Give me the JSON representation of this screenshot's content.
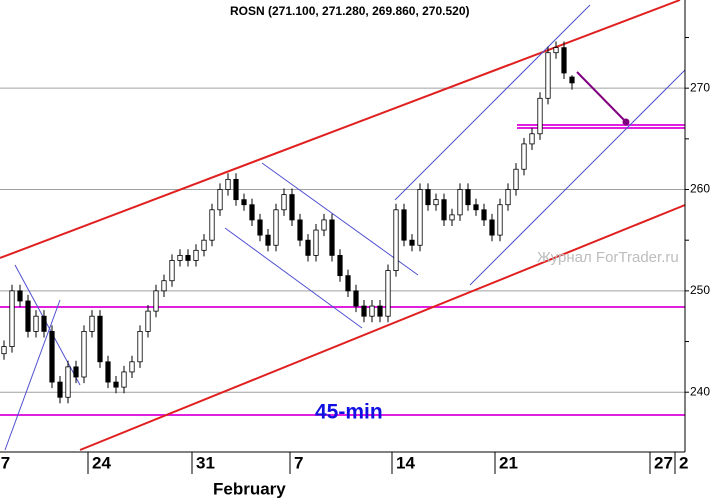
{
  "chart_data": {
    "type": "candlestick",
    "title": "ROSN (271.100, 271.280, 269.860, 270.520)",
    "watermark": "Журнал ForTrader.ru",
    "annotation": "45-min",
    "month_label": "February",
    "ohlc": [
      [
        243.8,
        245.1,
        243.2,
        244.5
      ],
      [
        244.5,
        250.6,
        243.9,
        250
      ],
      [
        250,
        250.6,
        248.4,
        249
      ],
      [
        249,
        249.6,
        245.4,
        246
      ],
      [
        246,
        248.1,
        245.4,
        247.5
      ],
      [
        247.5,
        248.1,
        245.4,
        246
      ],
      [
        246,
        246.6,
        240.4,
        241
      ],
      [
        241,
        241.6,
        238.9,
        239.5
      ],
      [
        239.5,
        243.1,
        238.9,
        242.5
      ],
      [
        242.5,
        243.1,
        240.9,
        241.5
      ],
      [
        241.5,
        246.6,
        240.9,
        246
      ],
      [
        246,
        248.1,
        245.4,
        247.5
      ],
      [
        247.5,
        248.1,
        242.4,
        243
      ],
      [
        243,
        243.6,
        240.4,
        241
      ],
      [
        241,
        241.6,
        239.9,
        240.5
      ],
      [
        240.5,
        242.6,
        239.9,
        242
      ],
      [
        242,
        243.6,
        241.4,
        243
      ],
      [
        243,
        246.6,
        242.4,
        246
      ],
      [
        246,
        248.6,
        245.4,
        248
      ],
      [
        248,
        250.6,
        247.4,
        250
      ],
      [
        250,
        251.6,
        249.4,
        251
      ],
      [
        251,
        253.6,
        250.4,
        253
      ],
      [
        253,
        254.1,
        252.4,
        253.5
      ],
      [
        253.5,
        254.1,
        252.4,
        253
      ],
      [
        253,
        254.6,
        252.4,
        254
      ],
      [
        254,
        255.6,
        253.4,
        255
      ],
      [
        255,
        258.6,
        254.4,
        258
      ],
      [
        258,
        260.6,
        257.4,
        260
      ],
      [
        260,
        261.6,
        259.4,
        261
      ],
      [
        261,
        261.6,
        258.4,
        259
      ],
      [
        259,
        259.6,
        257.9,
        258.5
      ],
      [
        258.5,
        259.1,
        256.4,
        257
      ],
      [
        257,
        257.6,
        254.9,
        255.5
      ],
      [
        255.5,
        256.1,
        253.9,
        254.5
      ],
      [
        254.5,
        258.6,
        253.9,
        258
      ],
      [
        258,
        260.1,
        257.4,
        259.5
      ],
      [
        259.5,
        260.1,
        256.4,
        257
      ],
      [
        257,
        257.6,
        254.4,
        255
      ],
      [
        255,
        255.6,
        252.9,
        253.5
      ],
      [
        253.5,
        256.6,
        252.9,
        256
      ],
      [
        256,
        257.6,
        255.4,
        257
      ],
      [
        257,
        257.6,
        252.9,
        253.5
      ],
      [
        253.5,
        254.1,
        250.9,
        251.5
      ],
      [
        251.5,
        252.1,
        249.4,
        250
      ],
      [
        250,
        250.6,
        247.9,
        248.5
      ],
      [
        248.5,
        249.1,
        246.9,
        247.5
      ],
      [
        247.5,
        249.1,
        246.9,
        248.5
      ],
      [
        248.5,
        249.1,
        246.9,
        247.5
      ],
      [
        247.5,
        252.6,
        246.9,
        252
      ],
      [
        252,
        258.6,
        251.4,
        258
      ],
      [
        258,
        258.6,
        254.4,
        255
      ],
      [
        255,
        255.6,
        253.9,
        254.5
      ],
      [
        254.5,
        260.6,
        253.9,
        260
      ],
      [
        260,
        260.6,
        257.9,
        258.5
      ],
      [
        258.5,
        259.6,
        257.9,
        259
      ],
      [
        259,
        259.6,
        256.4,
        257
      ],
      [
        257,
        258.1,
        256.4,
        257.5
      ],
      [
        257.5,
        260.6,
        256.9,
        260
      ],
      [
        260,
        260.6,
        257.9,
        258.5
      ],
      [
        258.5,
        259.1,
        257.4,
        258
      ],
      [
        258,
        258.6,
        256.4,
        257
      ],
      [
        257,
        257.6,
        254.9,
        255.5
      ],
      [
        255.5,
        259.1,
        254.9,
        258.5
      ],
      [
        258.5,
        260.6,
        257.9,
        260
      ],
      [
        260,
        262.6,
        259.4,
        262
      ],
      [
        262,
        265.1,
        261.4,
        264.5
      ],
      [
        264.5,
        266.1,
        263.9,
        265.5
      ],
      [
        265.5,
        269.6,
        264.9,
        269
      ],
      [
        269,
        274.1,
        268.4,
        273.5
      ],
      [
        273.5,
        274.6,
        272.9,
        274
      ],
      [
        274,
        274.6,
        270.9,
        271.5
      ],
      [
        271.1,
        271.28,
        269.86,
        270.52
      ]
    ],
    "xlim": [
      -0.5,
      85.125
    ],
    "xticks": [
      {
        "value": -0.9,
        "label": "7"
      },
      {
        "value": 10.5,
        "label": "24"
      },
      {
        "value": 23.5,
        "label": "31"
      },
      {
        "value": 35.75,
        "label": "7"
      },
      {
        "value": 48.5,
        "label": "14"
      },
      {
        "value": 61.375,
        "label": "21"
      },
      {
        "value": 80.75,
        "label": "27"
      },
      {
        "value": 83.875,
        "label": "2"
      }
    ],
    "ylim": [
      234.1,
      278.7
    ],
    "yticks": [
      240,
      250,
      260,
      270
    ],
    "minor_yticks": [
      245,
      255,
      265,
      275
    ],
    "grid": true,
    "up_color": "#ffffff",
    "down_color": "#000000",
    "edge_color": "#000000"
  }
}
